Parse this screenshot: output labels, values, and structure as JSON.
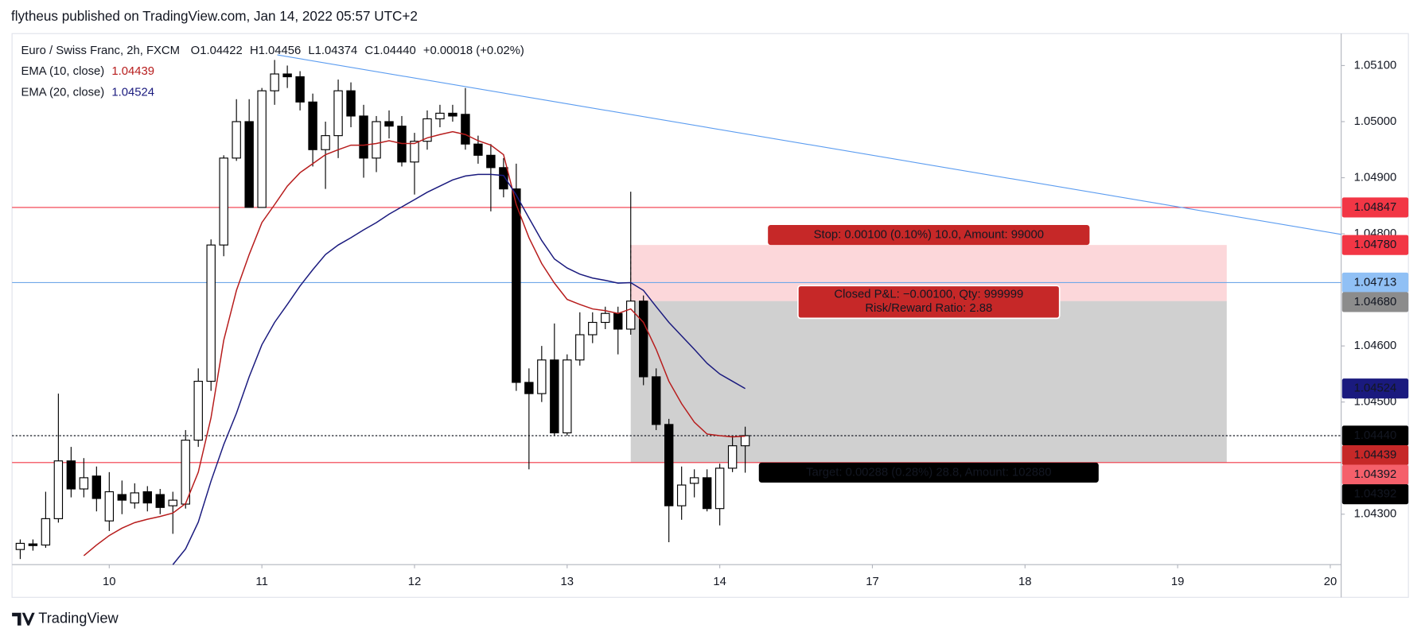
{
  "header": {
    "text": "flytheus published on TradingView.com, Jan 14, 2022 05:57 UTC+2"
  },
  "footer": {
    "brand": "TradingView"
  },
  "chart_data": {
    "type": "candlestick",
    "symbol": "Euro / Swiss Franc, 2h, FXCM",
    "ohlc_legend": [
      {
        "key": "O",
        "value": "1.04422"
      },
      {
        "key": "H",
        "value": "1.04456"
      },
      {
        "key": "L",
        "value": "1.04374"
      },
      {
        "key": "C",
        "value": "1.04440"
      }
    ],
    "change": "+0.00018 (+0.02%)",
    "up_color": "#ffffff",
    "down_color": "#000000",
    "edge_color": "#000000",
    "open": [
      1.04237,
      1.04247,
      1.04245,
      1.04292,
      1.04395,
      1.04345,
      1.04368,
      1.04288,
      1.04335,
      1.0432,
      1.0434,
      1.04335,
      1.04315,
      1.04318,
      1.04432,
      1.04537,
      1.0478,
      1.04935,
      1.05,
      1.04847,
      1.05055,
      1.05085,
      1.0508,
      1.05035,
      1.0495,
      1.04975,
      1.05055,
      1.0501,
      1.04935,
      1.05,
      1.04992,
      1.04928,
      1.04965,
      1.05005,
      1.05015,
      1.05013,
      1.0496,
      1.0494,
      1.04918,
      1.0488,
      1.04535,
      1.04515,
      1.04575,
      1.04445,
      1.04575,
      1.0462,
      1.04642,
      1.04658,
      1.0463,
      1.0468,
      1.04545,
      1.0446,
      1.04315,
      1.04355,
      1.04365,
      1.0431,
      1.04382,
      1.04422
    ],
    "high": [
      1.04255,
      1.04255,
      1.0434,
      1.04515,
      1.0442,
      1.044,
      1.04385,
      1.04375,
      1.0436,
      1.04355,
      1.0435,
      1.04345,
      1.0434,
      1.0445,
      1.0456,
      1.0479,
      1.0494,
      1.0504,
      1.0504,
      1.0506,
      1.0511,
      1.051,
      1.0509,
      1.0505,
      1.05,
      1.05075,
      1.0507,
      1.0503,
      1.0501,
      1.0502,
      1.0501,
      1.0498,
      1.0502,
      1.0503,
      1.0503,
      1.0506,
      1.04975,
      1.0496,
      1.04935,
      1.04925,
      1.0456,
      1.046,
      1.0464,
      1.04585,
      1.0466,
      1.0466,
      1.0467,
      1.0467,
      1.04875,
      1.0469,
      1.0456,
      1.0447,
      1.04385,
      1.0438,
      1.0438,
      1.0439,
      1.0444,
      1.04456
    ],
    "low": [
      1.0422,
      1.04235,
      1.0424,
      1.04285,
      1.0433,
      1.0433,
      1.04305,
      1.0427,
      1.043,
      1.0431,
      1.04305,
      1.043,
      1.04265,
      1.0431,
      1.0442,
      1.0452,
      1.0476,
      1.0493,
      1.04847,
      1.04847,
      1.0503,
      1.0506,
      1.0502,
      1.0492,
      1.0488,
      1.04935,
      1.0499,
      1.049,
      1.0491,
      1.0497,
      1.0492,
      1.0487,
      1.0495,
      1.0499,
      1.05,
      1.0495,
      1.04925,
      1.0484,
      1.04865,
      1.0452,
      1.0438,
      1.045,
      1.0444,
      1.0444,
      1.04565,
      1.04605,
      1.0463,
      1.04585,
      1.0462,
      1.0453,
      1.0445,
      1.0425,
      1.0429,
      1.0433,
      1.04305,
      1.0428,
      1.04375,
      1.04374
    ],
    "close": [
      1.04248,
      1.04244,
      1.04292,
      1.04395,
      1.04345,
      1.04365,
      1.04328,
      1.0434,
      1.04325,
      1.04338,
      1.0432,
      1.04312,
      1.04325,
      1.04432,
      1.04537,
      1.0478,
      1.04935,
      1.05,
      1.04847,
      1.05055,
      1.05085,
      1.0508,
      1.05035,
      1.0495,
      1.04975,
      1.05055,
      1.0501,
      1.04935,
      1.05,
      1.04992,
      1.04928,
      1.04965,
      1.05005,
      1.05015,
      1.0501,
      1.0496,
      1.0494,
      1.04918,
      1.0488,
      1.04535,
      1.04515,
      1.04575,
      1.04445,
      1.04575,
      1.0462,
      1.04642,
      1.04658,
      1.0463,
      1.0468,
      1.04545,
      1.0446,
      1.04315,
      1.04352,
      1.04365,
      1.0431,
      1.04382,
      1.04422,
      1.0444
    ],
    "series": [
      {
        "name": "EMA (10, close)",
        "value_label": "1.04439",
        "color": "#b71c1c",
        "values": [
          null,
          null,
          null,
          null,
          null,
          1.04226,
          1.04245,
          1.04262,
          1.04275,
          1.04285,
          1.04291,
          1.04296,
          1.04302,
          1.04319,
          1.04375,
          1.04472,
          1.0461,
          1.04699,
          1.04763,
          1.0482,
          1.04852,
          1.04885,
          1.04909,
          1.04925,
          1.04941,
          1.0495,
          1.04958,
          1.04958,
          1.04961,
          1.04966,
          1.04961,
          1.04961,
          1.04971,
          1.04977,
          1.04982,
          1.04977,
          1.04966,
          1.04958,
          1.04941,
          1.04852,
          1.04793,
          1.04747,
          1.04712,
          1.04683,
          1.04674,
          1.04666,
          1.04663,
          1.04658,
          1.04666,
          1.04642,
          1.04594,
          1.04537,
          1.04497,
          1.04464,
          1.04443,
          1.0444,
          1.04438,
          1.04439
        ]
      },
      {
        "name": "EMA (20, close)",
        "value_label": "1.04524",
        "color": "#1a1a7e",
        "values": [
          null,
          null,
          null,
          null,
          null,
          null,
          null,
          null,
          null,
          null,
          null,
          null,
          1.0421,
          1.04238,
          1.04286,
          1.04359,
          1.04424,
          1.0448,
          1.04545,
          1.04602,
          1.04642,
          1.04674,
          1.04707,
          1.04736,
          1.04763,
          1.0478,
          1.04793,
          1.04807,
          1.0482,
          1.04835,
          1.04848,
          1.04861,
          1.04874,
          1.04885,
          1.04896,
          1.04903,
          1.04906,
          1.04906,
          1.04904,
          1.04869,
          1.04828,
          1.04788,
          1.04755,
          1.04739,
          1.04728,
          1.04721,
          1.04717,
          1.04712,
          1.04713,
          1.04699,
          1.0467,
          1.04642,
          1.04618,
          1.04594,
          1.04569,
          1.0455,
          1.04537,
          1.04524
        ]
      }
    ],
    "xlim": [
      -0.643,
      103.857
    ],
    "xticks": [
      {
        "value": 7,
        "label": "10"
      },
      {
        "value": 19,
        "label": "11"
      },
      {
        "value": 31,
        "label": "12"
      },
      {
        "value": 43,
        "label": "13"
      },
      {
        "value": 55,
        "label": "14"
      },
      {
        "value": 67,
        "label": "17"
      },
      {
        "value": 79,
        "label": "18"
      },
      {
        "value": 91,
        "label": "19"
      },
      {
        "value": 103,
        "label": "20"
      }
    ],
    "ylim": [
      1.0421,
      1.05157
    ],
    "yticks": [
      {
        "value": 1.051,
        "label": "1.05100"
      },
      {
        "value": 1.05,
        "label": "1.05000"
      },
      {
        "value": 1.049,
        "label": "1.04900"
      },
      {
        "value": 1.048,
        "label": "1.04800"
      },
      {
        "value": 1.046,
        "label": "1.04600"
      },
      {
        "value": 1.045,
        "label": "1.04500"
      },
      {
        "value": 1.043,
        "label": "1.04300"
      }
    ],
    "hlines": [
      {
        "value": 1.04847,
        "color": "#f23645",
        "dash": false
      },
      {
        "value": 1.04713,
        "color": "#6fa8e8",
        "dash": false
      },
      {
        "value": 1.04392,
        "color": "#f23645",
        "dash": false
      },
      {
        "value": 1.0444,
        "color": "#131722",
        "dash": true
      }
    ],
    "trendline": {
      "color": "#5b9cf0",
      "x": [
        20.21,
        103.857
      ],
      "y": [
        1.05119,
        1.04799
      ]
    },
    "position": {
      "x": [
        48,
        94.86
      ],
      "entry": 1.0468,
      "stop": 1.0478,
      "target": 1.04392,
      "stop_label": "Stop: 0.00100 (0.10%) 10.0, Amount: 99000",
      "pnl_label": "Closed P&L: −0.00100, Qty: 999999",
      "rr_label": "Risk/Reward Ratio: 2.88",
      "target_label": "Target: 0.00288 (0.28%) 28.8, Amount: 102880"
    },
    "price_labels": [
      {
        "value": 1.04847,
        "label": "1.04847",
        "bg": "#f23645",
        "fg": "#ffffff"
      },
      {
        "value": 1.0478,
        "label": "1.04780",
        "bg": "#f23645",
        "fg": "#ffffff"
      },
      {
        "value": 1.04713,
        "label": "1.04713",
        "bg": "#90c0f5",
        "fg": "#131722"
      },
      {
        "value": 1.0468,
        "label": "1.04680",
        "bg": "#8c8c8c",
        "fg": "#ffffff"
      },
      {
        "value": 1.04524,
        "label": "1.04524",
        "bg": "#1a1a7e",
        "fg": "#ffffff"
      },
      {
        "value": 1.0444,
        "label": "1.04440",
        "bg": "#000000",
        "fg": "#ffffff"
      },
      {
        "value": 1.04439,
        "label": "1.04439",
        "bg": "#c62828",
        "fg": "#ffffff"
      },
      {
        "value": 1.04392,
        "label": "1.04392",
        "bg": "#f5606b",
        "fg": "#ffffff"
      },
      {
        "value": 1.04392,
        "label": "1.04392",
        "bg": "#000000",
        "fg": "#ffffff"
      }
    ]
  }
}
